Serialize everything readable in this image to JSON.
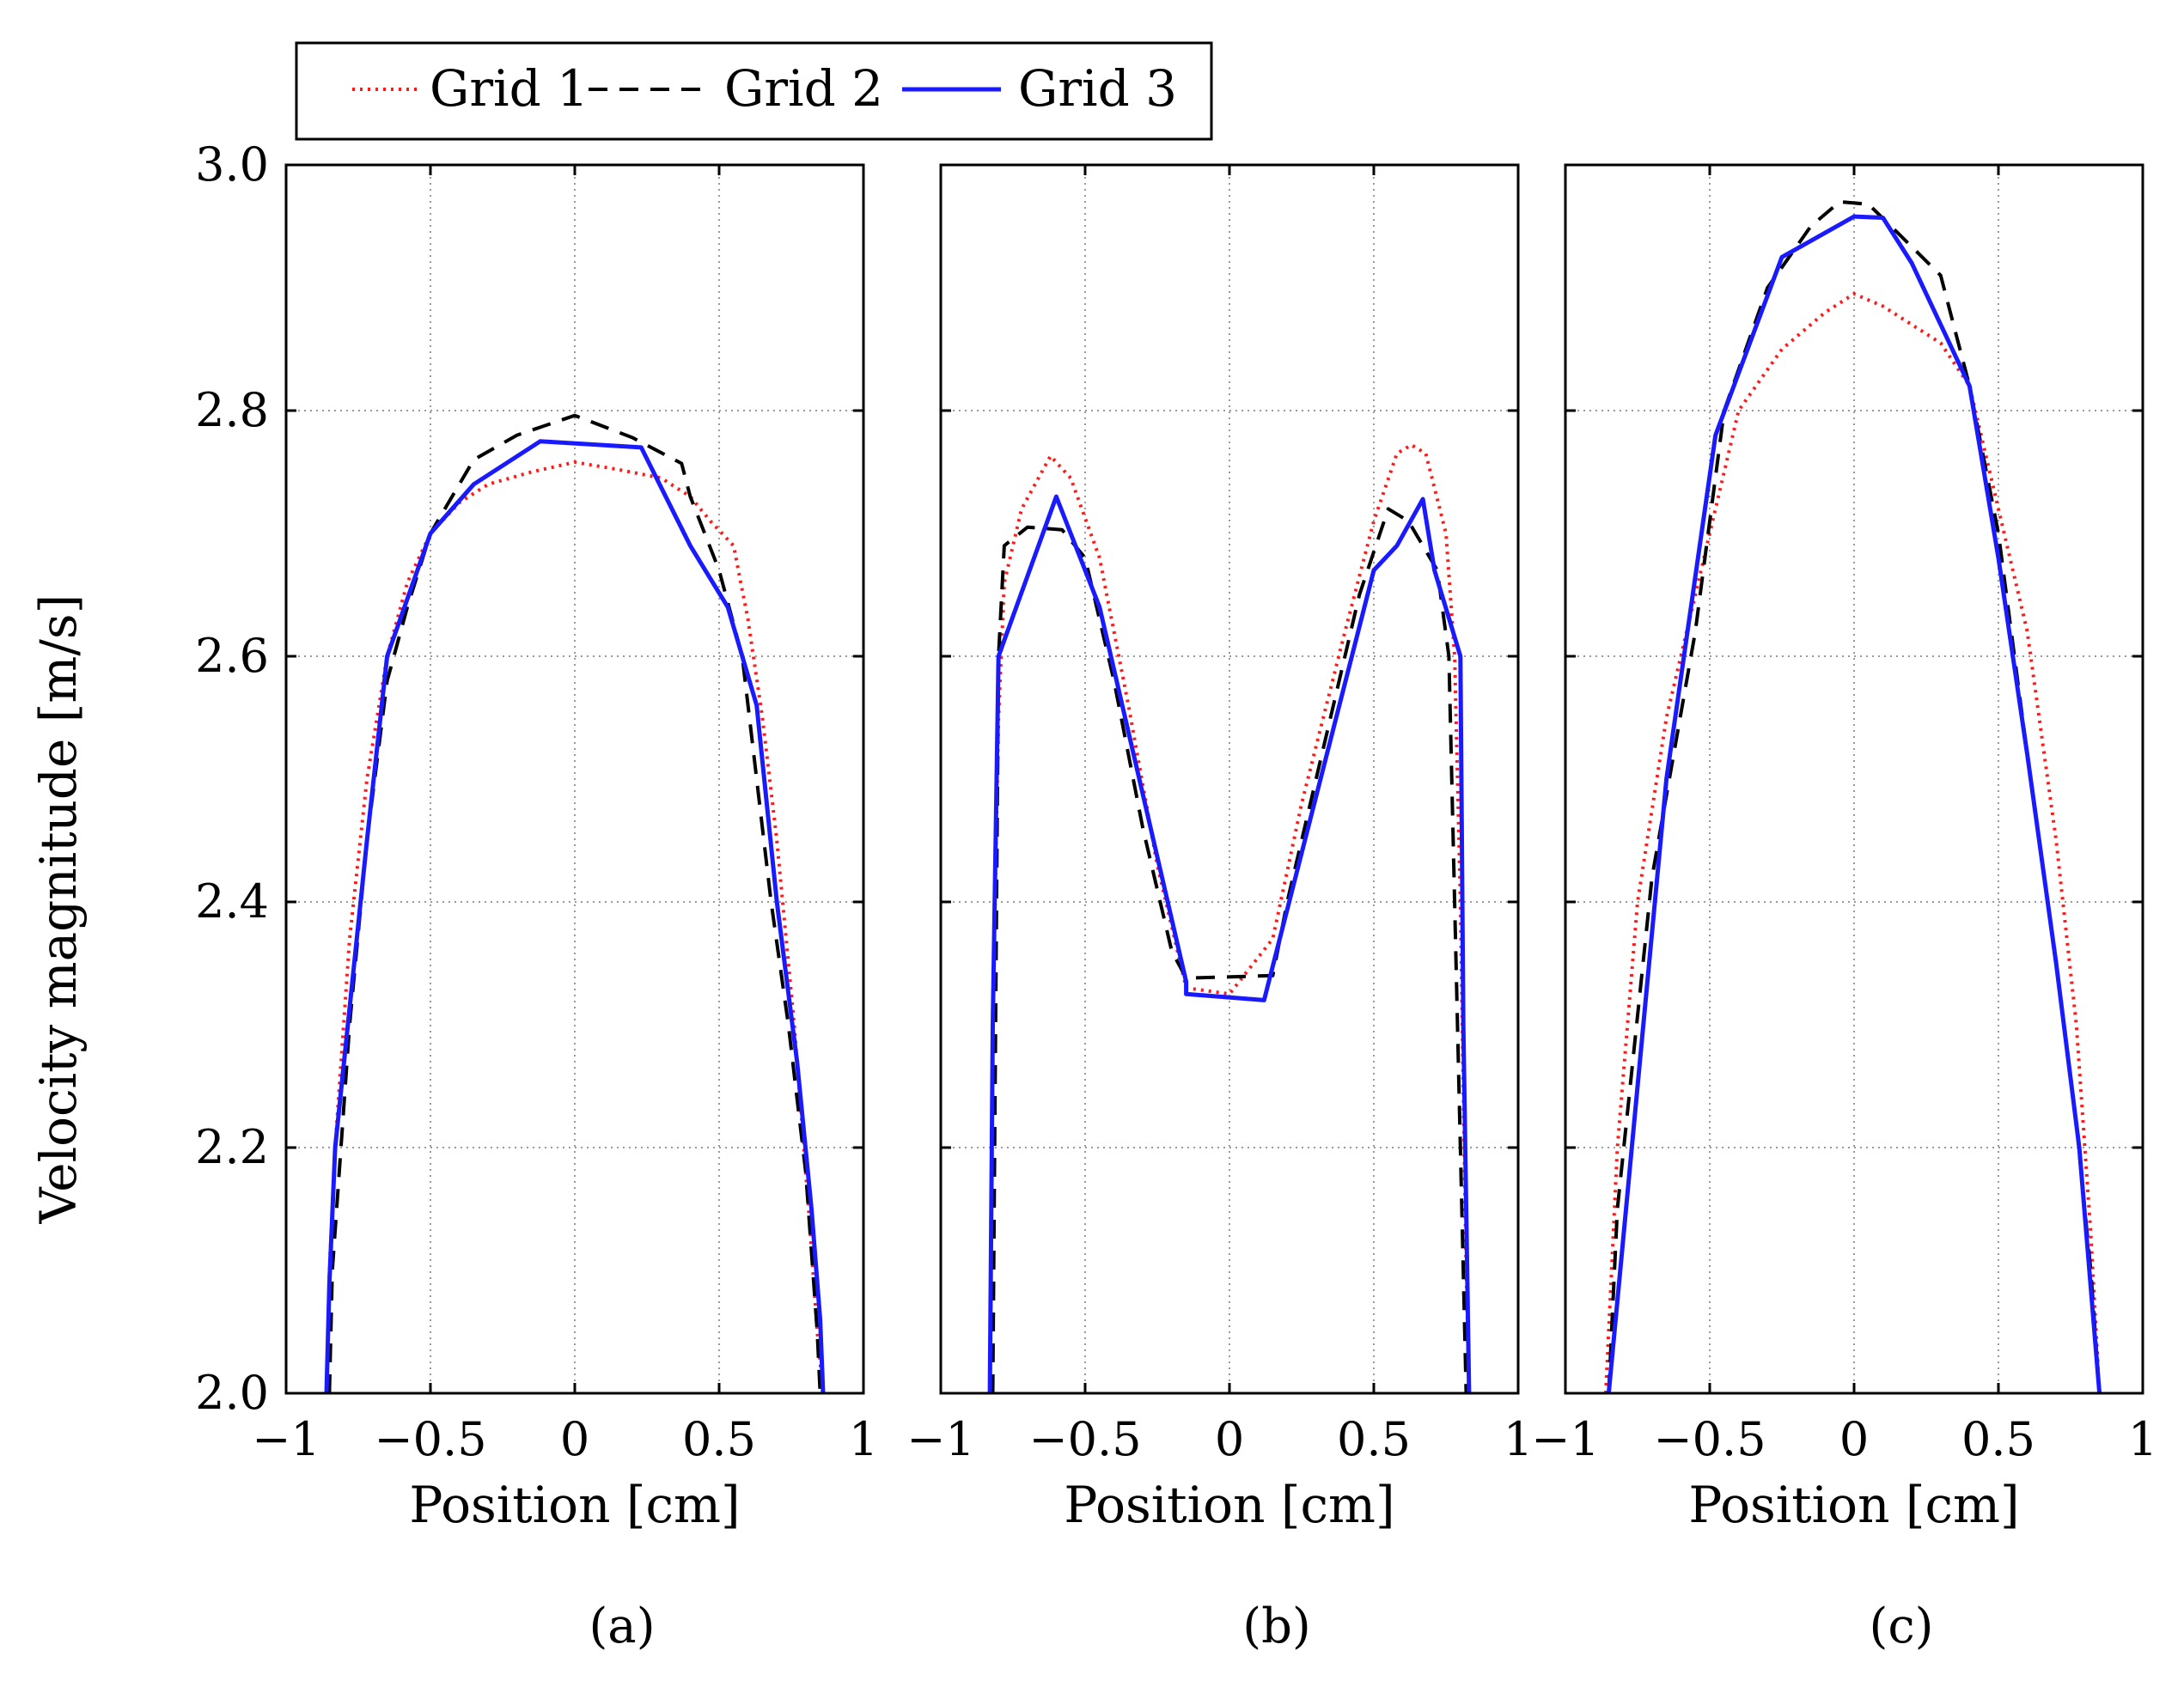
{
  "legend": {
    "entries": [
      {
        "name": "Grid 1",
        "color": "#ff1a1a",
        "dash": "dotted"
      },
      {
        "name": "Grid 2",
        "color": "#000000",
        "dash": "dashed"
      },
      {
        "name": "Grid 3",
        "color": "#1a1aff",
        "dash": "solid"
      }
    ]
  },
  "ylabel": "Velocity magnitude [m/s]",
  "chart_data": [
    {
      "type": "line",
      "caption": "(a)",
      "xlabel": "Position [cm]",
      "xlim": [
        -1,
        1
      ],
      "ylim": [
        2.0,
        3.0
      ],
      "xticks": [
        -1,
        -0.5,
        0,
        0.5,
        1
      ],
      "xtick_labels": [
        "−1",
        "−0.5",
        "0",
        "0.5",
        "1"
      ],
      "yticks": [
        2.0,
        2.2,
        2.4,
        2.6,
        2.8,
        3.0
      ],
      "ytick_labels": [
        "2.0",
        "2.2",
        "2.4",
        "2.6",
        "2.8",
        "3.0"
      ],
      "grid": true,
      "series": [
        {
          "name": "Grid 1",
          "points": [
            [
              -0.86,
              2.0
            ],
            [
              -0.85,
              2.1
            ],
            [
              -0.83,
              2.2
            ],
            [
              -0.78,
              2.37
            ],
            [
              -0.72,
              2.5
            ],
            [
              -0.65,
              2.6
            ],
            [
              -0.58,
              2.66
            ],
            [
              -0.5,
              2.7
            ],
            [
              -0.4,
              2.725
            ],
            [
              -0.3,
              2.74
            ],
            [
              -0.15,
              2.75
            ],
            [
              0.0,
              2.758
            ],
            [
              0.15,
              2.752
            ],
            [
              0.3,
              2.745
            ],
            [
              0.4,
              2.73
            ],
            [
              0.47,
              2.71
            ],
            [
              0.55,
              2.69
            ],
            [
              0.6,
              2.63
            ],
            [
              0.65,
              2.55
            ],
            [
              0.7,
              2.45
            ],
            [
              0.76,
              2.3
            ],
            [
              0.81,
              2.15
            ],
            [
              0.84,
              2.05
            ],
            [
              0.86,
              2.0
            ]
          ]
        },
        {
          "name": "Grid 2",
          "points": [
            [
              -0.85,
              2.0
            ],
            [
              -0.84,
              2.1
            ],
            [
              -0.78,
              2.3
            ],
            [
              -0.72,
              2.45
            ],
            [
              -0.65,
              2.58
            ],
            [
              -0.58,
              2.64
            ],
            [
              -0.5,
              2.7
            ],
            [
              -0.35,
              2.76
            ],
            [
              -0.2,
              2.78
            ],
            [
              0.0,
              2.796
            ],
            [
              0.2,
              2.778
            ],
            [
              0.37,
              2.757
            ],
            [
              0.4,
              2.73
            ],
            [
              0.45,
              2.7
            ],
            [
              0.5,
              2.67
            ],
            [
              0.58,
              2.6
            ],
            [
              0.63,
              2.5
            ],
            [
              0.68,
              2.4
            ],
            [
              0.74,
              2.3
            ],
            [
              0.8,
              2.18
            ],
            [
              0.84,
              2.05
            ],
            [
              0.85,
              2.0
            ]
          ]
        },
        {
          "name": "Grid 3",
          "points": [
            [
              -0.86,
              2.0
            ],
            [
              -0.85,
              2.09
            ],
            [
              -0.83,
              2.2
            ],
            [
              -0.72,
              2.45
            ],
            [
              -0.65,
              2.6
            ],
            [
              -0.5,
              2.7
            ],
            [
              -0.35,
              2.74
            ],
            [
              -0.12,
              2.775
            ],
            [
              0.23,
              2.77
            ],
            [
              0.4,
              2.69
            ],
            [
              0.53,
              2.64
            ],
            [
              0.63,
              2.56
            ],
            [
              0.7,
              2.4
            ],
            [
              0.77,
              2.27
            ],
            [
              0.82,
              2.15
            ],
            [
              0.85,
              2.06
            ],
            [
              0.86,
              2.0
            ]
          ]
        }
      ]
    },
    {
      "type": "line",
      "caption": "(b)",
      "xlabel": "Position [cm]",
      "xlim": [
        -1,
        1
      ],
      "ylim": [
        2.0,
        3.0
      ],
      "xticks": [
        -1,
        -0.5,
        0,
        0.5,
        1
      ],
      "xtick_labels": [
        "−1",
        "−0.5",
        "0",
        "0.5",
        "1"
      ],
      "yticks": [
        2.0,
        2.2,
        2.4,
        2.6,
        2.8,
        3.0
      ],
      "grid": true,
      "series": [
        {
          "name": "Grid 1",
          "points": [
            [
              -0.83,
              2.0
            ],
            [
              -0.82,
              2.3
            ],
            [
              -0.8,
              2.55
            ],
            [
              -0.78,
              2.66
            ],
            [
              -0.72,
              2.72
            ],
            [
              -0.62,
              2.763
            ],
            [
              -0.55,
              2.745
            ],
            [
              -0.45,
              2.68
            ],
            [
              -0.35,
              2.56
            ],
            [
              -0.25,
              2.43
            ],
            [
              -0.15,
              2.33
            ],
            [
              0.0,
              2.325
            ],
            [
              0.15,
              2.37
            ],
            [
              0.25,
              2.48
            ],
            [
              0.4,
              2.62
            ],
            [
              0.5,
              2.71
            ],
            [
              0.58,
              2.765
            ],
            [
              0.63,
              2.772
            ],
            [
              0.68,
              2.765
            ],
            [
              0.75,
              2.7
            ],
            [
              0.78,
              2.6
            ],
            [
              0.8,
              2.4
            ],
            [
              0.82,
              2.1
            ],
            [
              0.83,
              2.0
            ]
          ]
        },
        {
          "name": "Grid 2",
          "points": [
            [
              -0.82,
              2.0
            ],
            [
              -0.81,
              2.3
            ],
            [
              -0.8,
              2.6
            ],
            [
              -0.78,
              2.69
            ],
            [
              -0.7,
              2.705
            ],
            [
              -0.58,
              2.703
            ],
            [
              -0.5,
              2.68
            ],
            [
              -0.4,
              2.58
            ],
            [
              -0.3,
              2.46
            ],
            [
              -0.2,
              2.36
            ],
            [
              -0.15,
              2.338
            ],
            [
              0.15,
              2.34
            ],
            [
              0.2,
              2.4
            ],
            [
              0.3,
              2.5
            ],
            [
              0.45,
              2.65
            ],
            [
              0.55,
              2.72
            ],
            [
              0.62,
              2.71
            ],
            [
              0.72,
              2.67
            ],
            [
              0.76,
              2.6
            ],
            [
              0.79,
              2.3
            ],
            [
              0.82,
              2.0
            ]
          ]
        },
        {
          "name": "Grid 3",
          "points": [
            [
              -0.83,
              2.0
            ],
            [
              -0.82,
              2.3
            ],
            [
              -0.8,
              2.6
            ],
            [
              -0.6,
              2.73
            ],
            [
              -0.45,
              2.64
            ],
            [
              -0.15,
              2.335
            ],
            [
              -0.15,
              2.325
            ],
            [
              0.12,
              2.32
            ],
            [
              0.5,
              2.67
            ],
            [
              0.58,
              2.69
            ],
            [
              0.67,
              2.728
            ],
            [
              0.71,
              2.67
            ],
            [
              0.8,
              2.6
            ],
            [
              0.81,
              2.3
            ],
            [
              0.83,
              2.0
            ]
          ]
        }
      ]
    },
    {
      "type": "line",
      "caption": "(c)",
      "xlabel": "Position [cm]",
      "xlim": [
        -1,
        1
      ],
      "ylim": [
        2.0,
        3.0
      ],
      "xticks": [
        -1,
        -0.5,
        0,
        0.5,
        1
      ],
      "xtick_labels": [
        "−1",
        "−0.5",
        "0",
        "0.5",
        "1"
      ],
      "yticks": [
        2.0,
        2.2,
        2.4,
        2.6,
        2.8,
        3.0
      ],
      "grid": true,
      "series": [
        {
          "name": "Grid 1",
          "points": [
            [
              -0.86,
              2.0
            ],
            [
              -0.82,
              2.2
            ],
            [
              -0.75,
              2.4
            ],
            [
              -0.65,
              2.55
            ],
            [
              -0.5,
              2.7
            ],
            [
              -0.4,
              2.8
            ],
            [
              -0.25,
              2.85
            ],
            [
              -0.1,
              2.88
            ],
            [
              0.0,
              2.895
            ],
            [
              0.1,
              2.885
            ],
            [
              0.3,
              2.855
            ],
            [
              0.4,
              2.82
            ],
            [
              0.5,
              2.72
            ],
            [
              0.6,
              2.62
            ],
            [
              0.7,
              2.45
            ],
            [
              0.77,
              2.3
            ],
            [
              0.82,
              2.13
            ],
            [
              0.85,
              2.0
            ]
          ]
        },
        {
          "name": "Grid 2",
          "points": [
            [
              -0.85,
              2.0
            ],
            [
              -0.82,
              2.15
            ],
            [
              -0.7,
              2.42
            ],
            [
              -0.55,
              2.62
            ],
            [
              -0.45,
              2.8
            ],
            [
              -0.3,
              2.9
            ],
            [
              -0.15,
              2.95
            ],
            [
              -0.05,
              2.97
            ],
            [
              0.05,
              2.968
            ],
            [
              0.15,
              2.945
            ],
            [
              0.3,
              2.91
            ],
            [
              0.4,
              2.82
            ],
            [
              0.5,
              2.7
            ],
            [
              0.6,
              2.52
            ],
            [
              0.7,
              2.35
            ],
            [
              0.77,
              2.22
            ],
            [
              0.82,
              2.1
            ],
            [
              0.85,
              2.0
            ]
          ]
        },
        {
          "name": "Grid 3",
          "points": [
            [
              -0.85,
              2.0
            ],
            [
              -0.65,
              2.5
            ],
            [
              -0.48,
              2.78
            ],
            [
              -0.25,
              2.925
            ],
            [
              0.0,
              2.958
            ],
            [
              0.1,
              2.957
            ],
            [
              0.2,
              2.92
            ],
            [
              0.3,
              2.87
            ],
            [
              0.4,
              2.82
            ],
            [
              0.5,
              2.68
            ],
            [
              0.6,
              2.52
            ],
            [
              0.7,
              2.35
            ],
            [
              0.78,
              2.2
            ],
            [
              0.85,
              2.0
            ]
          ]
        }
      ]
    }
  ]
}
